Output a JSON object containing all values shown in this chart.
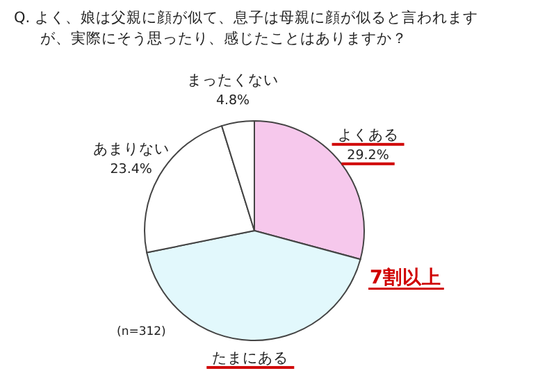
{
  "chart_data": {
    "type": "pie",
    "title": "Q. よく、娘は父親に顔が似て、息子は母親に顔が似ると言われますが、実際にそう思ったり、感じたことはありますか？",
    "categories": [
      "よくある",
      "たまにある",
      "あまりない",
      "まったくない"
    ],
    "values": [
      29.2,
      42.6,
      23.4,
      4.8
    ],
    "value_labels": [
      "29.2%",
      null,
      "23.4%",
      "4.8%"
    ],
    "colors": [
      "#f6c8ec",
      "#e2f8fc",
      "#ffffff",
      "#ffffff"
    ],
    "annotations": [
      "7割以上",
      "(n=312)"
    ]
  }
}
